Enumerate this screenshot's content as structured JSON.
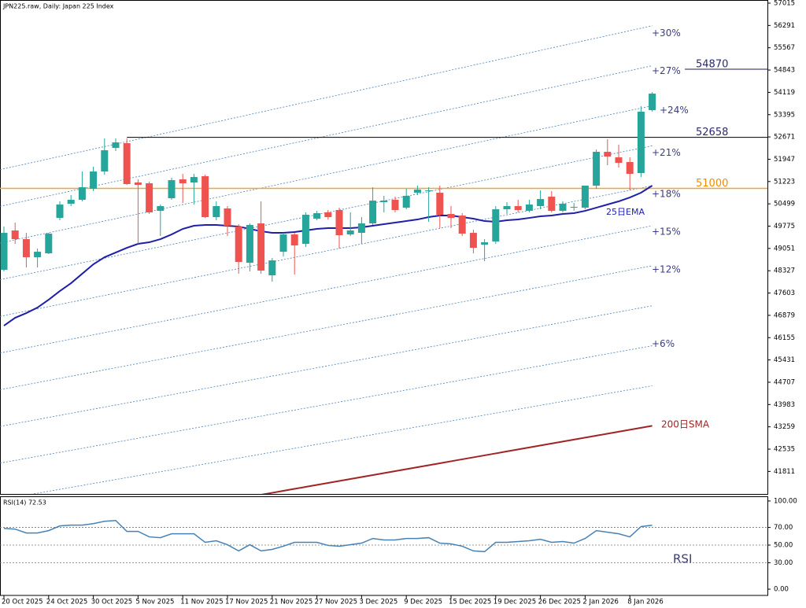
{
  "chart_data": [
    {
      "type": "candlestick",
      "title": "JPN225.raw, Daily:  Japan 225 Index",
      "categories": [
        "20 Oct 2025",
        null,
        null,
        null,
        "24 Oct 2025",
        null,
        null,
        null,
        "30 Oct 2025",
        null,
        null,
        null,
        "5 Nov 2025",
        null,
        null,
        null,
        "11 Nov 2025",
        null,
        null,
        null,
        "17 Nov 2025",
        null,
        null,
        null,
        "21 Nov 2025",
        null,
        null,
        null,
        "27 Nov 2025",
        null,
        null,
        null,
        "3 Dec 2025",
        null,
        null,
        null,
        "9 Dec 2025",
        null,
        null,
        null,
        "15 Dec 2025",
        null,
        null,
        null,
        "19 Dec 2025",
        null,
        null,
        null,
        "26 Dec 2025",
        null,
        null,
        null,
        "2 Jan 2026",
        null,
        null,
        null,
        "8 Jan 2026",
        null,
        null
      ],
      "open": [
        48357,
        49634,
        49353,
        48765,
        48893,
        50042,
        50502,
        50630,
        50987,
        51549,
        52315,
        52469,
        51192,
        51166,
        50272,
        50681,
        51294,
        51192,
        51396,
        50068,
        50349,
        49761,
        48587,
        49864,
        48178,
        48944,
        49506,
        49200,
        50017,
        50221,
        50298,
        49506,
        49557,
        49864,
        50553,
        50630,
        50374,
        50860,
        50911,
        50860,
        50170,
        50119,
        49557,
        49174,
        49276,
        50323,
        50426,
        50272,
        50426,
        50732,
        50272,
        50374,
        50374,
        51090,
        52188,
        52009,
        51856,
        51498,
        53541
      ],
      "high": [
        49761,
        49889,
        49557,
        49046,
        49557,
        50579,
        50783,
        51549,
        51703,
        52622,
        52622,
        52622,
        51294,
        51217,
        50477,
        51345,
        51473,
        51473,
        51447,
        50579,
        50426,
        49838,
        49864,
        50579,
        48740,
        49557,
        49557,
        50221,
        50272,
        50298,
        50374,
        50221,
        50068,
        51038,
        50758,
        50732,
        50987,
        51090,
        51038,
        51090,
        50426,
        50196,
        49659,
        49353,
        50426,
        50553,
        50630,
        50630,
        50936,
        50911,
        50579,
        50528,
        51090,
        52264,
        52596,
        52418,
        52009,
        53669,
        54129
      ],
      "low": [
        48306,
        49200,
        48433,
        48433,
        48868,
        49966,
        50426,
        50579,
        50911,
        51447,
        52213,
        51115,
        49200,
        50170,
        49455,
        50630,
        50528,
        50477,
        50042,
        49966,
        49455,
        48229,
        48306,
        48229,
        47974,
        48791,
        48204,
        49097,
        49966,
        49991,
        49046,
        49455,
        49200,
        49813,
        50221,
        50221,
        50323,
        50783,
        49915,
        49710,
        49710,
        49455,
        48893,
        48638,
        49200,
        50170,
        50221,
        50221,
        50323,
        50221,
        50221,
        50272,
        50323,
        50987,
        51754,
        51677,
        50936,
        51370,
        53490
      ],
      "close": [
        49557,
        49353,
        48765,
        48944,
        49532,
        50477,
        50630,
        51038,
        51549,
        52239,
        52494,
        51141,
        51115,
        50221,
        50426,
        51268,
        51166,
        51370,
        50068,
        50426,
        49787,
        48612,
        49813,
        48331,
        48663,
        49506,
        49149,
        50145,
        50196,
        50068,
        49481,
        49634,
        49864,
        50604,
        50604,
        50298,
        50758,
        50962,
        50936,
        50145,
        50042,
        49532,
        49072,
        49251,
        50323,
        50426,
        50298,
        50477,
        50655,
        50272,
        50502,
        50400,
        51090,
        52188,
        52035,
        51830,
        51473,
        53490,
        54078
      ],
      "up_color": "#26a69a",
      "down_color": "#ef5350",
      "series": [
        {
          "name": "25日EMA",
          "color": "#1f1fa8",
          "values": [
            46543,
            46799,
            46952,
            47131,
            47386,
            47667,
            47923,
            48229,
            48536,
            48765,
            48919,
            49072,
            49200,
            49251,
            49353,
            49506,
            49685,
            49787,
            49813,
            49813,
            49787,
            49761,
            49685,
            49608,
            49557,
            49557,
            49583,
            49634,
            49685,
            49710,
            49710,
            49710,
            49736,
            49787,
            49838,
            49889,
            49940,
            49991,
            50068,
            50119,
            50119,
            50068,
            50017,
            49940,
            49915,
            49966,
            49991,
            50042,
            50093,
            50119,
            50170,
            50196,
            50272,
            50374,
            50477,
            50579,
            50706,
            50860,
            51090
          ]
        },
        {
          "name": "200日SMA",
          "color": "#a02424",
          "values": [
            null,
            null,
            null,
            null,
            null,
            null,
            null,
            null,
            null,
            null,
            null,
            null,
            null,
            null,
            null,
            null,
            null,
            null,
            null,
            null,
            null,
            null,
            null,
            41053,
            41117,
            41181,
            41245,
            41309,
            41373,
            41437,
            41501,
            41565,
            41629,
            41693,
            41757,
            41821,
            41885,
            41949,
            42013,
            42077,
            42141,
            42205,
            42269,
            42333,
            42397,
            42461,
            42525,
            42589,
            42653,
            42717,
            42781,
            42845,
            42909,
            42973,
            43037,
            43101,
            43165,
            43229,
            43293
          ]
        }
      ],
      "bands": [
        {
          "label": "+30%",
          "values": [
            51610,
            56281
          ]
        },
        {
          "label": "+27%",
          "values": [
            50419,
            54982
          ]
        },
        {
          "label": "+24%",
          "values": [
            49228,
            53683
          ]
        },
        {
          "label": "+21%",
          "values": [
            48037,
            52385
          ]
        },
        {
          "label": "+18%",
          "values": [
            46846,
            51086
          ]
        },
        {
          "label": "+15%",
          "values": [
            45655,
            49787
          ]
        },
        {
          "label": "+12%",
          "values": [
            44464,
            48488
          ]
        },
        {
          "values": [
            43273,
            47189
          ]
        },
        {
          "label": "+6%",
          "values": [
            42082,
            45891
          ]
        },
        {
          "values": [
            40891,
            44592
          ]
        }
      ],
      "band_color": "#4a7fb5",
      "levels": [
        {
          "value": 54870,
          "color": "#1c1c5c"
        },
        {
          "value": 52658,
          "color": "#000000"
        },
        {
          "value": 51000,
          "color": "#f5a623"
        }
      ],
      "ylim": [
        41080,
        57117
      ],
      "yticks": [
        57015,
        56291,
        55567,
        54843,
        54119,
        53395,
        52671,
        51947,
        51223,
        50499,
        49775,
        49051,
        48327,
        47603,
        46879,
        46155,
        45431,
        44707,
        43983,
        43259,
        42535,
        41811
      ],
      "grid": false
    },
    {
      "type": "line",
      "title": "RSI(14) 72.53",
      "series": [
        {
          "name": "RSI",
          "color": "#4682b4",
          "values": [
            69.0,
            68.1,
            63.7,
            63.7,
            66.4,
            71.7,
            72.6,
            72.6,
            74.3,
            77.0,
            77.9,
            65.5,
            65.5,
            59.3,
            58.4,
            62.8,
            62.8,
            62.8,
            53.1,
            54.9,
            50.4,
            43.4,
            50.4,
            43.4,
            45.1,
            48.7,
            53.1,
            53.1,
            53.1,
            49.6,
            48.7,
            50.4,
            52.2,
            57.5,
            55.8,
            55.8,
            57.5,
            57.5,
            58.4,
            52.2,
            51.3,
            48.7,
            43.4,
            42.5,
            53.1,
            53.1,
            54.0,
            54.9,
            56.6,
            53.1,
            54.0,
            52.2,
            57.5,
            66.4,
            64.6,
            62.8,
            59.3,
            71.0,
            72.53
          ]
        }
      ],
      "levels": [
        70,
        50,
        30
      ],
      "ylim": [
        -7.1,
        105.3
      ],
      "yticks": [
        {
          "value": 100,
          "label": "100.00"
        },
        {
          "value": 70,
          "label": "70.00"
        },
        {
          "value": 50,
          "label": "50.00"
        },
        {
          "value": 30,
          "label": "30.00"
        },
        {
          "value": 0,
          "label": "0.00"
        }
      ],
      "grid": false
    }
  ]
}
